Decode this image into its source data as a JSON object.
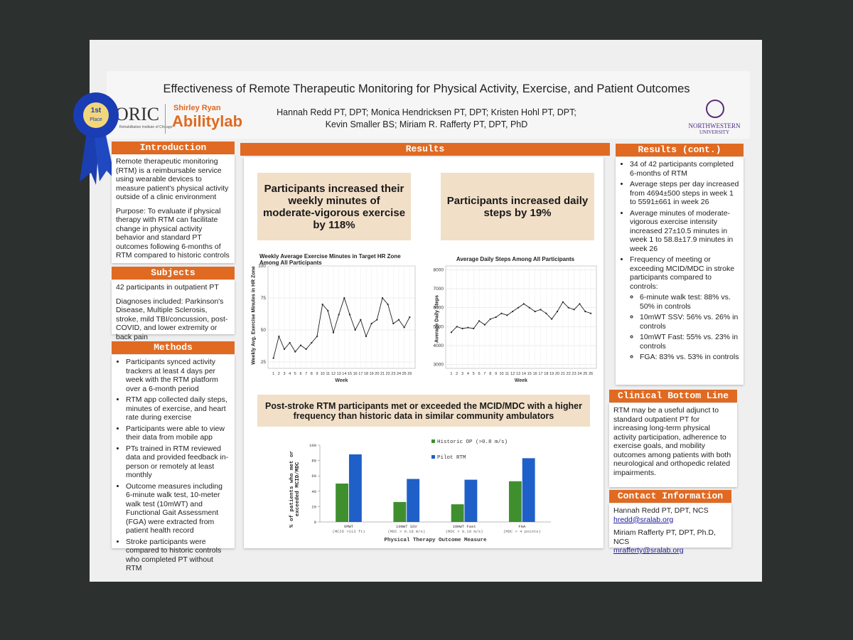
{
  "header": {
    "title": "Effectiveness of Remote Therapeutic Monitoring for Physical Activity, Exercise, and Patient Outcomes",
    "authors": [
      "Hannah Redd PT, DPT; Monica Hendricksen PT, DPT; Kristen Hohl PT, DPT;",
      "Kevin Smaller BS; Miriam R. Rafferty PT, DPT, PhD"
    ],
    "logo_ric": "ORIC",
    "logo_ric_sub": "Rehabilitation Institute of Chicago",
    "logo_sr": "Shirley Ryan",
    "logo_al": "Abilitylab",
    "logo_nu": "NORTHWESTERN",
    "logo_nu_sub": "UNIVERSITY",
    "ribbon_rank": "1st",
    "ribbon_text": "Place"
  },
  "introduction": {
    "heading": "Introduction",
    "paragraphs": [
      "Remote therapeutic monitoring (RTM) is a reimbursable service using wearable devices to measure patient's physical activity outside of a clinic environment",
      "Purpose: To evaluate if physical therapy with RTM can facilitate change in physical activity behavior and standard PT outcomes following 6-months of RTM compared to historic controls"
    ]
  },
  "subjects": {
    "heading": "Subjects",
    "paragraphs": [
      "42 participants in outpatient PT",
      "Diagnoses included: Parkinson's Disease, Multiple Sclerosis, stroke, mild TBI/concussion, post-COVID, and lower extremity or back pain"
    ]
  },
  "methods": {
    "heading": "Methods",
    "items": [
      "Participants synced activity trackers at least 4 days per week with the RTM platform over a 6-month period",
      "RTM app collected daily steps, minutes of exercise, and heart rate during exercise",
      "Participants were able to view their data from mobile app",
      "PTs trained in RTM reviewed data and provided feedback in-person or remotely at least monthly",
      "Outcome measures including 6-minute walk test, 10-meter walk test (10mWT) and Functional Gait Assessment (FGA) were extracted from patient health record",
      "Stroke participants were compared to historic controls who completed PT without RTM"
    ]
  },
  "results": {
    "heading": "Results",
    "callouts": [
      "Participants increased their weekly minutes of moderate-vigorous exercise by 118%",
      "Participants increased daily steps by 19%"
    ],
    "banner": "Post-stroke RTM participants met or exceeded the MCID/MDC with a higher frequency than historic data in similar community ambulators"
  },
  "results_cont": {
    "heading": "Results (cont.)",
    "items": [
      "34 of 42 participants completed 6-months of RTM",
      "Average steps per day increased from 4694±500 steps in week 1 to 5591±661 in week 26",
      "Average minutes of moderate-vigorous exercise intensity increased 27±10.5 minutes in week 1 to  58.8±17.9 minutes in week 26",
      "Frequency of meeting or exceeding MCID/MDC in stroke participants compared to controls:"
    ],
    "subitems": [
      "6-minute walk test: 88% vs. 50% in controls",
      "10mWT SSV: 56% vs. 26% in controls",
      "10mWT Fast: 55% vs. 23% in controls",
      "FGA: 83% vs. 53% in controls"
    ]
  },
  "bottom_line": {
    "heading": "Clinical Bottom Line",
    "text": "RTM may be a useful adjunct to standard outpatient PT for increasing long-term physical activity participation, adherence to exercise goals, and mobility outcomes among patients with both neurological and orthopedic related impairments."
  },
  "contact": {
    "heading": "Contact Information",
    "people": [
      {
        "name": "Hannah Redd PT, DPT, NCS",
        "email": "hredd@sralab.org"
      },
      {
        "name": "Miriam Rafferty PT, DPT, Ph.D, NCS",
        "email": "mrafferty@sralab.org"
      }
    ]
  },
  "chart_data": [
    {
      "type": "line",
      "title": "Weekly Average Exercise Minutes in Target HR Zone Among All Participants",
      "ylabel": "Weekly Avg. Exercise Minutes in HR Zone",
      "xlabel": "Week",
      "x": [
        1,
        2,
        3,
        4,
        5,
        6,
        7,
        8,
        9,
        10,
        11,
        12,
        13,
        14,
        15,
        16,
        17,
        18,
        19,
        20,
        21,
        22,
        23,
        24,
        25,
        26
      ],
      "values": [
        28,
        45,
        35,
        40,
        33,
        38,
        35,
        40,
        45,
        70,
        65,
        48,
        62,
        75,
        62,
        50,
        58,
        45,
        55,
        58,
        75,
        70,
        55,
        58,
        52,
        60
      ],
      "color": "#222222",
      "xlim": [
        0,
        27
      ],
      "ylim": [
        20,
        100
      ],
      "yticks": [
        25,
        50,
        75,
        100
      ],
      "grid": true
    },
    {
      "type": "line",
      "title": "Average Daily Steps Among All Participants",
      "ylabel": "Average Daily Steps",
      "xlabel": "Week",
      "x": [
        1,
        2,
        3,
        4,
        5,
        6,
        7,
        8,
        9,
        10,
        11,
        12,
        13,
        14,
        15,
        16,
        17,
        18,
        19,
        20,
        21,
        22,
        23,
        24,
        25,
        26
      ],
      "values": [
        4700,
        5000,
        4900,
        4950,
        4900,
        5300,
        5100,
        5400,
        5500,
        5700,
        5600,
        5800,
        6000,
        6200,
        6000,
        5800,
        5900,
        5700,
        5400,
        5800,
        6300,
        6000,
        5900,
        6200,
        5800,
        5700
      ],
      "color": "#222222",
      "xlim": [
        0,
        27
      ],
      "ylim": [
        2800,
        8200
      ],
      "yticks": [
        3000,
        4000,
        5000,
        6000,
        7000,
        8000
      ],
      "grid": true
    },
    {
      "type": "bar",
      "ylabel": "% of patients who met or exceeded MCID/MDC",
      "xlabel": "Physical Therapy Outcome Measure",
      "categories": [
        "6MWT",
        "10mWT SSV",
        "10mWT Fast",
        "FGA"
      ],
      "category_notes": [
        "(MCID >113 ft)",
        "(MDC > 0.18 m/s)",
        "(MDC > 0.19 m/s)",
        "(MDC > 4 points)"
      ],
      "series": [
        {
          "name": "Historic OP (>0.8 m/s)",
          "color": "#3f8f2f",
          "values": [
            50,
            26,
            23,
            53
          ]
        },
        {
          "name": "Pilot RTM",
          "color": "#1f5fc8",
          "values": [
            88,
            56,
            55,
            83
          ]
        }
      ],
      "ylim": [
        0,
        100
      ],
      "yticks": [
        0,
        20,
        40,
        60,
        80,
        100
      ],
      "grid": false
    }
  ]
}
